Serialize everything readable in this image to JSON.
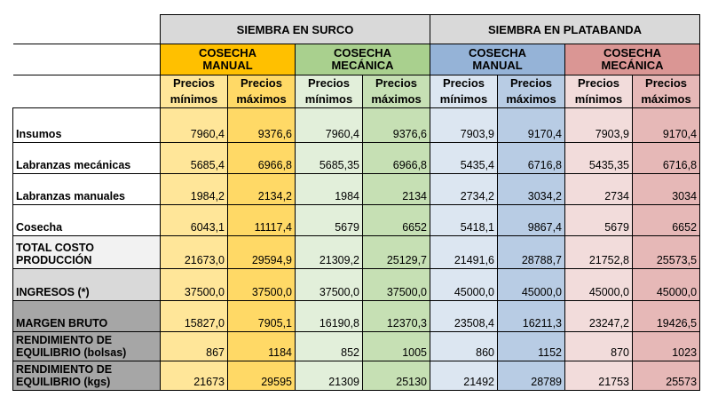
{
  "header": {
    "group_surco": "SIEMBRA EN SURCO",
    "group_plata": "SIEMBRA EN PLATABANDA",
    "sub": [
      "COSECHA MANUAL",
      "COSECHA MECÁNICA",
      "COSECHA MANUAL",
      "COSECHA MECÁNICA"
    ],
    "price_word": "Precios",
    "min_word": "mínimos",
    "max_word": "máximos"
  },
  "rows": [
    {
      "label": "Insumos",
      "values": [
        "7960,4",
        "9376,6",
        "7960,4",
        "9376,6",
        "7903,9",
        "9170,4",
        "7903,9",
        "9170,4"
      ]
    },
    {
      "label": "Labranzas mecánicas",
      "values": [
        "5685,4",
        "6966,8",
        "5685,35",
        "6966,8",
        "5435,4",
        "6716,8",
        "5435,35",
        "6716,8"
      ]
    },
    {
      "label": "Labranzas manuales",
      "values": [
        "1984,2",
        "2134,2",
        "1984",
        "2134",
        "2734,2",
        "3034,2",
        "2734",
        "3034"
      ]
    },
    {
      "label": "Cosecha",
      "values": [
        "6043,1",
        "11117,4",
        "5679",
        "6652",
        "5418,1",
        "9867,4",
        "5679",
        "6652"
      ]
    },
    {
      "label": "TOTAL COSTO PRODUCCIÓN",
      "values": [
        "21673,0",
        "29594,9",
        "21309,2",
        "25129,7",
        "21491,6",
        "28788,7",
        "21752,8",
        "25573,5"
      ]
    },
    {
      "label": "INGRESOS (*)",
      "values": [
        "37500,0",
        "37500,0",
        "37500,0",
        "37500,0",
        "45000,0",
        "45000,0",
        "45000,0",
        "45000,0"
      ]
    },
    {
      "label": "MARGEN BRUTO",
      "values": [
        "15827,0",
        "7905,1",
        "16190,8",
        "12370,3",
        "23508,4",
        "16211,3",
        "23247,2",
        "19426,5"
      ]
    },
    {
      "label": "RENDIMIENTO DE EQUILIBRIO (bolsas)",
      "values": [
        "867",
        "1184",
        "852",
        "1005",
        "860",
        "1152",
        "870",
        "1023"
      ]
    },
    {
      "label": "RENDIMIENTO DE EQUILIBRIO (kgs)",
      "values": [
        "21673",
        "29595",
        "21309",
        "25130",
        "21492",
        "28789",
        "21753",
        "25573"
      ]
    }
  ],
  "colors": {
    "group_header": "#d9d9d9",
    "surco_manual": "#ffc000",
    "surco_mecanica": "#a9d08e",
    "plata_manual": "#95b3d7",
    "plata_mecanica": "#da9694"
  }
}
